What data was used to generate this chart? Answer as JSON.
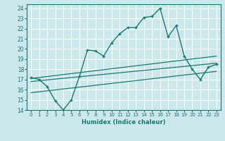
{
  "xlabel": "Humidex (Indice chaleur)",
  "ylabel": "",
  "bg_color": "#cce8ec",
  "grid_color": "#ffffff",
  "line_color": "#1a7a6e",
  "xlim": [
    -0.5,
    23.5
  ],
  "ylim": [
    14,
    24.4
  ],
  "xticks": [
    0,
    1,
    2,
    3,
    4,
    5,
    6,
    7,
    8,
    9,
    10,
    11,
    12,
    13,
    14,
    15,
    16,
    17,
    18,
    19,
    20,
    21,
    22,
    23
  ],
  "yticks": [
    14,
    15,
    16,
    17,
    18,
    19,
    20,
    21,
    22,
    23,
    24
  ],
  "main_x": [
    0,
    1,
    2,
    3,
    4,
    5,
    6,
    7,
    8,
    9,
    10,
    11,
    12,
    13,
    14,
    15,
    16,
    17,
    18,
    19,
    20,
    21,
    22,
    23
  ],
  "main_y": [
    17.2,
    17.0,
    16.3,
    14.9,
    14.0,
    15.0,
    17.3,
    19.9,
    19.8,
    19.3,
    20.6,
    21.5,
    22.1,
    22.1,
    23.1,
    23.2,
    24.0,
    21.2,
    22.3,
    19.3,
    18.0,
    17.0,
    18.2,
    18.5
  ],
  "line2_x": [
    0,
    23
  ],
  "line2_y": [
    17.1,
    19.3
  ],
  "line3_x": [
    0,
    23
  ],
  "line3_y": [
    16.8,
    18.6
  ],
  "line4_x": [
    0,
    23
  ],
  "line4_y": [
    15.7,
    17.8
  ]
}
